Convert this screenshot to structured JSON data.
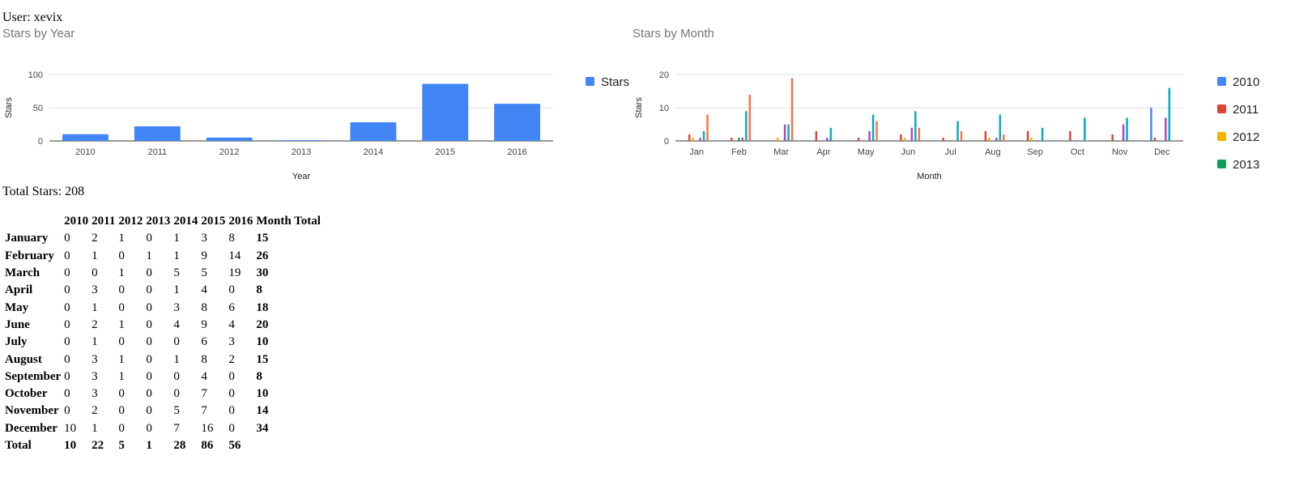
{
  "user_label": "User: xevix",
  "total_stars_label": "Total Stars: 208",
  "charts": {
    "year_title": "Stars by Year",
    "month_title": "Stars by Month"
  },
  "chart_data": [
    {
      "type": "bar",
      "title": "Stars by Year",
      "xlabel": "Year",
      "ylabel": "Stars",
      "categories": [
        "2010",
        "2011",
        "2012",
        "2013",
        "2014",
        "2015",
        "2016"
      ],
      "series": [
        {
          "name": "Stars",
          "values": [
            10,
            22,
            5,
            1,
            28,
            86,
            56
          ],
          "color": "#4285f4"
        }
      ],
      "ylim": [
        0,
        100
      ],
      "yticks": [
        0,
        50,
        100
      ],
      "grid": true,
      "legend": "right"
    },
    {
      "type": "bar",
      "title": "Stars by Month",
      "xlabel": "Month",
      "ylabel": "Stars",
      "categories": [
        "Jan",
        "Feb",
        "Mar",
        "Apr",
        "May",
        "Jun",
        "Jul",
        "Aug",
        "Sep",
        "Oct",
        "Nov",
        "Dec"
      ],
      "series": [
        {
          "name": "2010",
          "color": "#4285f4",
          "values": [
            0,
            0,
            0,
            0,
            0,
            0,
            0,
            0,
            0,
            0,
            0,
            10
          ]
        },
        {
          "name": "2011",
          "color": "#db4437",
          "values": [
            2,
            1,
            0,
            3,
            1,
            2,
            1,
            3,
            3,
            3,
            2,
            1
          ]
        },
        {
          "name": "2012",
          "color": "#f4b400",
          "values": [
            1,
            0,
            1,
            0,
            0,
            1,
            0,
            1,
            1,
            0,
            0,
            0
          ]
        },
        {
          "name": "2013",
          "color": "#0f9d58",
          "values": [
            0,
            1,
            0,
            0,
            0,
            0,
            0,
            0,
            0,
            0,
            0,
            0
          ]
        },
        {
          "name": "",
          "color": "#ab47bc",
          "values": [
            1,
            1,
            5,
            1,
            3,
            4,
            0,
            1,
            0,
            0,
            5,
            7
          ]
        },
        {
          "name": "",
          "color": "#00acc1",
          "values": [
            3,
            9,
            5,
            4,
            8,
            9,
            6,
            8,
            4,
            7,
            7,
            16
          ]
        },
        {
          "name": "",
          "color": "#ff7043",
          "values": [
            8,
            14,
            19,
            0,
            6,
            4,
            3,
            2,
            0,
            0,
            0,
            0
          ]
        }
      ],
      "ylim": [
        0,
        20
      ],
      "yticks": [
        0,
        10,
        20
      ],
      "grid": true,
      "legend": "right"
    }
  ],
  "table": {
    "headers": [
      "",
      "2010",
      "2011",
      "2012",
      "2013",
      "2014",
      "2015",
      "2016",
      "Month Total"
    ],
    "rows": [
      [
        "January",
        "0",
        "2",
        "1",
        "0",
        "1",
        "3",
        "8",
        "15"
      ],
      [
        "February",
        "0",
        "1",
        "0",
        "1",
        "1",
        "9",
        "14",
        "26"
      ],
      [
        "March",
        "0",
        "0",
        "1",
        "0",
        "5",
        "5",
        "19",
        "30"
      ],
      [
        "April",
        "0",
        "3",
        "0",
        "0",
        "1",
        "4",
        "0",
        "8"
      ],
      [
        "May",
        "0",
        "1",
        "0",
        "0",
        "3",
        "8",
        "6",
        "18"
      ],
      [
        "June",
        "0",
        "2",
        "1",
        "0",
        "4",
        "9",
        "4",
        "20"
      ],
      [
        "July",
        "0",
        "1",
        "0",
        "0",
        "0",
        "6",
        "3",
        "10"
      ],
      [
        "August",
        "0",
        "3",
        "1",
        "0",
        "1",
        "8",
        "2",
        "15"
      ],
      [
        "September",
        "0",
        "3",
        "1",
        "0",
        "0",
        "4",
        "0",
        "8"
      ],
      [
        "October",
        "0",
        "3",
        "0",
        "0",
        "0",
        "7",
        "0",
        "10"
      ],
      [
        "November",
        "0",
        "2",
        "0",
        "0",
        "5",
        "7",
        "0",
        "14"
      ],
      [
        "December",
        "10",
        "1",
        "0",
        "0",
        "7",
        "16",
        "0",
        "34"
      ]
    ],
    "total_row": [
      "Total",
      "10",
      "22",
      "5",
      "1",
      "28",
      "86",
      "56"
    ]
  }
}
